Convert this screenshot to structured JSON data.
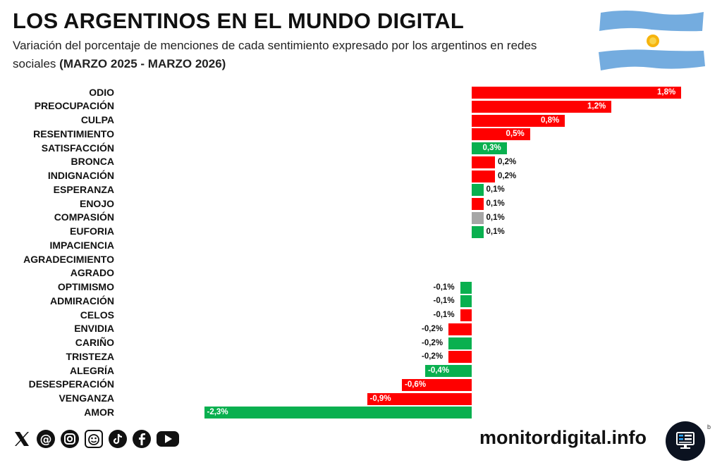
{
  "header": {
    "title": "LOS ARGENTINOS EN EL MUNDO DIGITAL",
    "subtitle": "Variación del porcentaje de menciones de cada sentimiento expresado por los argentinos en redes sociales",
    "period": "(MARZO 2025 - MARZO 2026)"
  },
  "colors": {
    "red": "#ff0000",
    "green": "#09b04f",
    "gray": "#a6a6a6"
  },
  "chart_data": {
    "type": "bar",
    "orientation": "horizontal",
    "title": "LOS ARGENTINOS EN EL MUNDO DIGITAL",
    "xlabel": "",
    "ylabel": "",
    "xlim": [
      -2.3,
      1.8
    ],
    "items": [
      {
        "label": "ODIO",
        "value": 1.8,
        "text": "1,8%",
        "color": "red"
      },
      {
        "label": "PREOCUPACIÓN",
        "value": 1.2,
        "text": "1,2%",
        "color": "red"
      },
      {
        "label": "CULPA",
        "value": 0.8,
        "text": "0,8%",
        "color": "red"
      },
      {
        "label": "RESENTIMIENTO",
        "value": 0.5,
        "text": "0,5%",
        "color": "red"
      },
      {
        "label": "SATISFACCIÓN",
        "value": 0.3,
        "text": "0,3%",
        "color": "green"
      },
      {
        "label": "BRONCA",
        "value": 0.2,
        "text": "0,2%",
        "color": "red"
      },
      {
        "label": "INDIGNACIÓN",
        "value": 0.2,
        "text": "0,2%",
        "color": "red"
      },
      {
        "label": "ESPERANZA",
        "value": 0.1,
        "text": "0,1%",
        "color": "green"
      },
      {
        "label": "ENOJO",
        "value": 0.1,
        "text": "0,1%",
        "color": "red"
      },
      {
        "label": "COMPASIÓN",
        "value": 0.1,
        "text": "0,1%",
        "color": "gray"
      },
      {
        "label": "EUFORIA",
        "value": 0.1,
        "text": "0,1%",
        "color": "green"
      },
      {
        "label": "IMPACIENCIA",
        "value": 0,
        "text": "",
        "color": "gray"
      },
      {
        "label": "AGRADECIMIENTO",
        "value": 0,
        "text": "",
        "color": "gray"
      },
      {
        "label": "AGRADO",
        "value": 0,
        "text": "",
        "color": "gray"
      },
      {
        "label": "OPTIMISMO",
        "value": -0.1,
        "text": "-0,1%",
        "color": "green"
      },
      {
        "label": "ADMIRACIÓN",
        "value": -0.1,
        "text": "-0,1%",
        "color": "green"
      },
      {
        "label": "CELOS",
        "value": -0.1,
        "text": "-0,1%",
        "color": "red"
      },
      {
        "label": "ENVIDIA",
        "value": -0.2,
        "text": "-0,2%",
        "color": "red"
      },
      {
        "label": "CARIÑO",
        "value": -0.2,
        "text": "-0,2%",
        "color": "green"
      },
      {
        "label": "TRISTEZA",
        "value": -0.2,
        "text": "-0,2%",
        "color": "red"
      },
      {
        "label": "ALEGRÍA",
        "value": -0.4,
        "text": "-0,4%",
        "color": "green"
      },
      {
        "label": "DESESPERACIÓN",
        "value": -0.6,
        "text": "-0,6%",
        "color": "red"
      },
      {
        "label": "VENGANZA",
        "value": -0.9,
        "text": "-0,9%",
        "color": "red"
      },
      {
        "label": "AMOR",
        "value": -2.3,
        "text": "-2,3%",
        "color": "green"
      }
    ]
  },
  "footer": {
    "website": "monitordigital.info",
    "corner_mark": "b",
    "social_icons": [
      "x-icon",
      "threads-icon",
      "instagram-icon",
      "meme-icon",
      "tiktok-icon",
      "facebook-icon",
      "youtube-icon"
    ]
  }
}
